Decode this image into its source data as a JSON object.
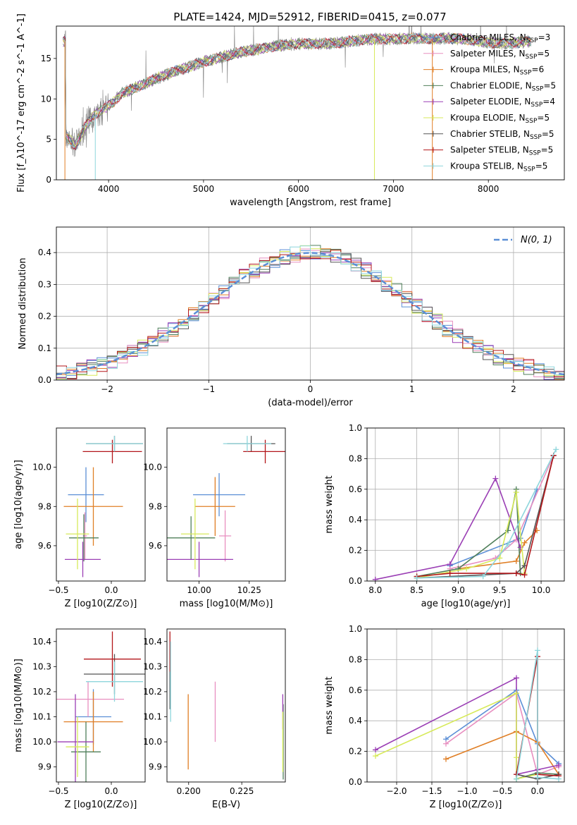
{
  "title": "PLATE=1424, MJD=52912, FIBERID=0415, z=0.077",
  "models": [
    {
      "label": "Chabrier MILES",
      "nssp": "3",
      "color": "#5b8fd6"
    },
    {
      "label": "Salpeter MILES",
      "nssp": "5",
      "color": "#e88fc0"
    },
    {
      "label": "Kroupa MILES",
      "nssp": "6",
      "color": "#e07f26"
    },
    {
      "label": "Chabrier ELODIE",
      "nssp": "5",
      "color": "#4f7f5a"
    },
    {
      "label": "Salpeter ELODIE",
      "nssp": "4",
      "color": "#9b3fb5"
    },
    {
      "label": "Kroupa ELODIE",
      "nssp": "5",
      "color": "#d7ea5a"
    },
    {
      "label": "Chabrier STELIB",
      "nssp": "5",
      "color": "#555555"
    },
    {
      "label": "Salpeter STELIB",
      "nssp": "5",
      "color": "#b3161a"
    },
    {
      "label": "Kroupa STELIB",
      "nssp": "5",
      "color": "#8ed6dc"
    }
  ],
  "chart_data": [
    {
      "id": "spectrum",
      "type": "line",
      "xlabel": "wavelength [Angstrom, rest frame]",
      "ylabel": "Flux [f_λ10^-17 erg cm^-2 s^-1 A^-1]",
      "xlim": [
        3450,
        8800
      ],
      "ylim": [
        0,
        19
      ],
      "xticks": [
        "4000",
        "5000",
        "6000",
        "7000",
        "8000"
      ],
      "yticks": [
        "0",
        "5",
        "10",
        "15"
      ],
      "grid": false,
      "legend": "top-right",
      "data_color": "#808080",
      "continuum": [
        [
          3550,
          5.5
        ],
        [
          3650,
          4.2
        ],
        [
          3750,
          6.5
        ],
        [
          3850,
          8.0
        ],
        [
          3950,
          8.8
        ],
        [
          4050,
          9.6
        ],
        [
          4150,
          10.8
        ],
        [
          4250,
          11.2
        ],
        [
          4400,
          12.0
        ],
        [
          4600,
          13.0
        ],
        [
          4800,
          13.8
        ],
        [
          5000,
          14.6
        ],
        [
          5200,
          15.2
        ],
        [
          5400,
          15.8
        ],
        [
          5600,
          16.2
        ],
        [
          5800,
          16.6
        ],
        [
          6000,
          16.8
        ],
        [
          6200,
          16.8
        ],
        [
          6400,
          16.9
        ],
        [
          6600,
          17.2
        ],
        [
          6800,
          17.4
        ],
        [
          7000,
          17.4
        ],
        [
          7200,
          17.5
        ],
        [
          7400,
          17.4
        ],
        [
          7600,
          17.5
        ],
        [
          7800,
          17.3
        ],
        [
          8000,
          17.0
        ],
        [
          8200,
          16.8
        ],
        [
          8400,
          17.1
        ]
      ]
    },
    {
      "id": "residuals",
      "type": "bar",
      "xlabel": "(data-model)/error",
      "ylabel": "Normed distribution",
      "xlim": [
        -2.5,
        2.5
      ],
      "ylim": [
        0,
        0.48
      ],
      "xticks": [
        "−2",
        "−1",
        "0",
        "1",
        "2"
      ],
      "yticks": [
        "0.0",
        "0.1",
        "0.2",
        "0.3",
        "0.4"
      ],
      "grid": true,
      "legend": "top-right",
      "gaussian_label": "N(0, 1)",
      "gaussian_color": "#5b8fd6",
      "bin_width": 0.1
    },
    {
      "id": "age-vs-Z",
      "type": "scatter",
      "xlabel": "Z [log10(Z/Z⊙)]",
      "ylabel": "age  [log10(age/yr)]",
      "xlim": [
        -0.52,
        0.32
      ],
      "ylim": [
        9.42,
        10.2
      ],
      "xticks": [
        "−0.5",
        "0.0"
      ],
      "yticks": [
        "9.6",
        "9.8",
        "10.0"
      ],
      "grid": false,
      "points": [
        {
          "x": -0.24,
          "y": 9.86,
          "ex": 0.17,
          "ey": 0.14
        },
        {
          "x": -0.25,
          "y": 9.65,
          "ex": 0.02,
          "ey": 0.12
        },
        {
          "x": -0.17,
          "y": 9.8,
          "ex": 0.28,
          "ey": 0.2
        },
        {
          "x": -0.26,
          "y": 9.64,
          "ex": 0.14,
          "ey": 0.12
        },
        {
          "x": -0.27,
          "y": 9.53,
          "ex": 0.17,
          "ey": 0.09
        },
        {
          "x": -0.32,
          "y": 9.66,
          "ex": 0.11,
          "ey": 0.18
        },
        {
          "x": 0.03,
          "y": 10.12,
          "ex": 0.27,
          "ey": 0.04
        },
        {
          "x": 0.01,
          "y": 10.08,
          "ex": 0.28,
          "ey": 0.06
        },
        {
          "x": 0.03,
          "y": 10.12,
          "ex": 0.27,
          "ey": 0.04
        }
      ]
    },
    {
      "id": "age-vs-mass",
      "type": "scatter",
      "xlabel": "mass [log10(M/M⊙)]",
      "ylabel": "",
      "xlim": [
        9.84,
        10.43
      ],
      "ylim": [
        9.42,
        10.2
      ],
      "xticks": [
        "10.00",
        "10.25"
      ],
      "yticks": [
        "9.6",
        "9.8",
        "10.0"
      ],
      "grid": false,
      "points": [
        {
          "x": 10.1,
          "y": 9.86,
          "ex": 0.13,
          "ey": 0.11
        },
        {
          "x": 10.13,
          "y": 9.65,
          "ex": 0.03,
          "ey": 0.13
        },
        {
          "x": 10.08,
          "y": 9.8,
          "ex": 0.1,
          "ey": 0.15
        },
        {
          "x": 9.96,
          "y": 9.64,
          "ex": 0.12,
          "ey": 0.11
        },
        {
          "x": 10.0,
          "y": 9.53,
          "ex": 0.17,
          "ey": 0.09
        },
        {
          "x": 9.98,
          "y": 9.66,
          "ex": 0.07,
          "ey": 0.18
        },
        {
          "x": 10.26,
          "y": 10.12,
          "ex": 0.12,
          "ey": 0.04
        },
        {
          "x": 10.33,
          "y": 10.08,
          "ex": 0.11,
          "ey": 0.06
        },
        {
          "x": 10.24,
          "y": 10.12,
          "ex": 0.12,
          "ey": 0.04
        }
      ]
    },
    {
      "id": "massweight-vs-age",
      "type": "line",
      "xlabel": "age  [log10(age/yr)]",
      "ylabel": "mass weight",
      "xlim": [
        7.9,
        10.28
      ],
      "ylim": [
        0,
        1
      ],
      "xticks": [
        "8.0",
        "8.5",
        "9.0",
        "9.5",
        "10.0"
      ],
      "yticks": [
        "0.0",
        "0.2",
        "0.4",
        "0.6",
        "0.8",
        "1.0"
      ],
      "grid": true,
      "series": [
        [
          [
            8.9,
            0.1
          ],
          [
            9.75,
            0.28
          ],
          [
            9.95,
            0.6
          ]
        ],
        [
          [
            8.9,
            0.08
          ],
          [
            9.45,
            0.15
          ],
          [
            9.7,
            0.27
          ],
          [
            10.15,
            0.82
          ]
        ],
        [
          [
            9.0,
            0.08
          ],
          [
            9.7,
            0.13
          ],
          [
            9.8,
            0.25
          ],
          [
            9.95,
            0.33
          ]
        ],
        [
          [
            8.5,
            0.03
          ],
          [
            9.0,
            0.08
          ],
          [
            9.6,
            0.33
          ],
          [
            9.7,
            0.6
          ],
          [
            9.75,
            0.05
          ]
        ],
        [
          [
            8.0,
            0.01
          ],
          [
            8.9,
            0.11
          ],
          [
            9.45,
            0.67
          ],
          [
            9.75,
            0.22
          ]
        ],
        [
          [
            8.5,
            0.02
          ],
          [
            9.1,
            0.08
          ],
          [
            9.5,
            0.15
          ],
          [
            9.7,
            0.58
          ],
          [
            9.8,
            0.05
          ]
        ],
        [
          [
            8.5,
            0.02
          ],
          [
            9.7,
            0.05
          ],
          [
            9.8,
            0.1
          ],
          [
            10.15,
            0.82
          ]
        ],
        [
          [
            8.5,
            0.03
          ],
          [
            8.9,
            0.05
          ],
          [
            9.7,
            0.05
          ],
          [
            9.8,
            0.04
          ],
          [
            10.15,
            0.82
          ]
        ],
        [
          [
            8.5,
            0.02
          ],
          [
            9.3,
            0.03
          ],
          [
            9.6,
            0.24
          ],
          [
            10.18,
            0.86
          ]
        ]
      ]
    },
    {
      "id": "mass-vs-Z",
      "type": "scatter",
      "xlabel": "Z [log10(Z/Z⊙)]",
      "ylabel": "mass [log10(M/M⊙)]",
      "xlim": [
        -0.52,
        0.32
      ],
      "ylim": [
        9.84,
        10.45
      ],
      "xticks": [
        "−0.5",
        "0.0"
      ],
      "yticks": [
        "9.9",
        "10.0",
        "10.1",
        "10.2",
        "10.3",
        "10.4"
      ],
      "grid": false,
      "points": [
        {
          "x": -0.17,
          "y": 10.1,
          "ex": 0.17,
          "ey": 0.11
        },
        {
          "x": -0.22,
          "y": 10.17,
          "ex": 0.34,
          "ey": 0.07
        },
        {
          "x": -0.17,
          "y": 10.08,
          "ex": 0.28,
          "ey": 0.12
        },
        {
          "x": -0.24,
          "y": 9.96,
          "ex": 0.14,
          "ey": 0.12
        },
        {
          "x": -0.34,
          "y": 10.0,
          "ex": 0.17,
          "ey": 0.19
        },
        {
          "x": -0.32,
          "y": 9.98,
          "ex": 0.11,
          "ey": 0.12
        },
        {
          "x": 0.03,
          "y": 10.27,
          "ex": 0.29,
          "ey": 0.08
        },
        {
          "x": 0.01,
          "y": 10.33,
          "ex": 0.27,
          "ey": 0.11
        },
        {
          "x": 0.03,
          "y": 10.24,
          "ex": 0.27,
          "ey": 0.08
        }
      ]
    },
    {
      "id": "mass-vs-ebv",
      "type": "scatter",
      "xlabel": "E(B-V)",
      "ylabel": "",
      "xlim": [
        0.1898,
        0.2455
      ],
      "ylim": [
        9.84,
        10.45
      ],
      "xticks": [
        "0.200",
        "0.225"
      ],
      "yticks": [
        "9.9",
        "10.0",
        "10.1",
        "10.2",
        "10.3",
        "10.4"
      ],
      "grid": false,
      "points": [
        {
          "x": 0.1912,
          "y": 10.3,
          "ex": 0,
          "ey": 0.1
        },
        {
          "x": 0.2125,
          "y": 10.12,
          "ex": 0,
          "ey": 0.12
        },
        {
          "x": 0.1998,
          "y": 10.04,
          "ex": 0,
          "ey": 0.15
        },
        {
          "x": 0.2445,
          "y": 10.0,
          "ex": 0,
          "ey": 0.15
        },
        {
          "x": 0.2443,
          "y": 10.12,
          "ex": 0,
          "ey": 0.07
        },
        {
          "x": 0.2443,
          "y": 10.0,
          "ex": 0,
          "ey": 0.12
        },
        {
          "x": 0.1912,
          "y": 10.25,
          "ex": 0,
          "ey": 0.12
        },
        {
          "x": 0.1912,
          "y": 10.36,
          "ex": 0,
          "ey": 0.08
        },
        {
          "x": 0.1915,
          "y": 10.24,
          "ex": 0,
          "ey": 0.16
        }
      ]
    },
    {
      "id": "massweight-vs-Z",
      "type": "line",
      "xlabel": "Z [log10(Z/Z⊙)]",
      "ylabel": "mass weight",
      "xlim": [
        -2.42,
        0.38
      ],
      "ylim": [
        0,
        1
      ],
      "xticks": [
        "−2.0",
        "−1.5",
        "−1.0",
        "−0.5",
        "0.0"
      ],
      "yticks": [
        "0.0",
        "0.2",
        "0.4",
        "0.6",
        "0.8",
        "1.0"
      ],
      "grid": true,
      "series": [
        [
          [
            -1.3,
            0.28
          ],
          [
            -0.3,
            0.6
          ],
          [
            0.0,
            0.25
          ],
          [
            0.3,
            0.12
          ]
        ],
        [
          [
            -1.3,
            0.25
          ],
          [
            -0.3,
            0.58
          ],
          [
            0.0,
            0.05
          ],
          [
            0.3,
            0.1
          ]
        ],
        [
          [
            -1.3,
            0.15
          ],
          [
            -0.3,
            0.33
          ],
          [
            0.0,
            0.26
          ],
          [
            0.3,
            0.05
          ]
        ],
        [
          [
            -0.3,
            0.02
          ],
          [
            0.0,
            0.06
          ],
          [
            0.3,
            0.05
          ]
        ],
        [
          [
            -2.3,
            0.21
          ],
          [
            -0.3,
            0.68
          ],
          [
            -0.3,
            0.05
          ],
          [
            0.0,
            0.08
          ],
          [
            0.3,
            0.11
          ]
        ],
        [
          [
            -2.3,
            0.17
          ],
          [
            -0.3,
            0.58
          ],
          [
            -0.3,
            0.16
          ],
          [
            -0.3,
            0.02
          ],
          [
            0.0,
            0.05
          ]
        ],
        [
          [
            -0.3,
            0.05
          ],
          [
            0.0,
            0.02
          ],
          [
            0.3,
            0.05
          ]
        ],
        [
          [
            -0.3,
            0.05
          ],
          [
            0.0,
            0.82
          ],
          [
            0.0,
            0.05
          ],
          [
            0.3,
            0.04
          ]
        ],
        [
          [
            -0.3,
            0.02
          ],
          [
            0.0,
            0.86
          ],
          [
            0.0,
            0.03
          ],
          [
            0.3,
            0.02
          ]
        ]
      ]
    }
  ]
}
